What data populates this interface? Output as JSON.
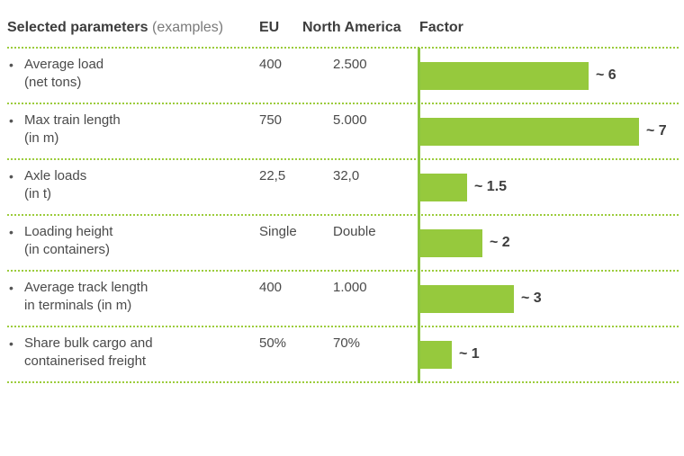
{
  "header": {
    "param_title": "Selected parameters",
    "param_note": "(examples)",
    "eu": "EU",
    "na": "North America",
    "factor": "Factor"
  },
  "rows": [
    {
      "line1": "Average load",
      "line2": "(net tons)",
      "eu": "400",
      "na": "2.500",
      "factor_label": "~ 6"
    },
    {
      "line1": "Max train length",
      "line2": "(in m)",
      "eu": "750",
      "na": "5.000",
      "factor_label": "~ 7"
    },
    {
      "line1": "Axle loads",
      "line2": "(in t)",
      "eu": "22,5",
      "na": "32,0",
      "factor_label": "~ 1.5"
    },
    {
      "line1": "Loading height",
      "line2": "(in containers)",
      "eu": "Single",
      "na": "Double",
      "factor_label": "~ 2"
    },
    {
      "line1": "Average track length",
      "line2": "in terminals (in m)",
      "eu": "400",
      "na": "1.000",
      "factor_label": "~ 3"
    },
    {
      "line1": "Share bulk cargo and",
      "line2": "containerised freight",
      "eu": "50%",
      "na": "70%",
      "factor_label": "~ 1"
    }
  ],
  "chart_data": {
    "type": "bar",
    "orientation": "horizontal",
    "categories": [
      "Average load (net tons)",
      "Max train length (in m)",
      "Axle loads (in t)",
      "Loading height (in containers)",
      "Average track length in terminals (in m)",
      "Share bulk cargo and containerised freight"
    ],
    "values": [
      6,
      7,
      1.5,
      2,
      3,
      1
    ],
    "data_labels": [
      "~ 6",
      "~ 7",
      "~ 1.5",
      "~ 2",
      "~ 3",
      "~ 1"
    ],
    "xlim": [
      0,
      7.1
    ],
    "grid": false,
    "legend": "none",
    "colors": {
      "bar": "#96c93d",
      "axis": "#8cc63f",
      "separator": "#9ccc3c"
    }
  }
}
